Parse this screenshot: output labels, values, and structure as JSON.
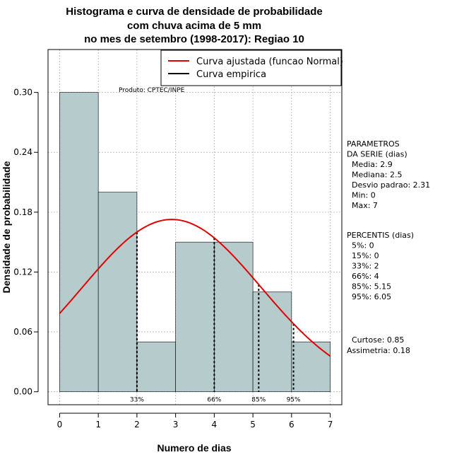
{
  "chart_data": {
    "type": "bar",
    "title_lines": [
      "Histograma e curva de densidade de probabilidade",
      "com chuva acima de 5 mm",
      "no mes de setembro (1998-2017): Regiao 10"
    ],
    "xlabel": "Numero de dias",
    "ylabel": "Densidade de probabilidade",
    "xlim": [
      -0.3,
      7.3
    ],
    "ylim": [
      -0.013,
      0.343
    ],
    "x_ticks": [
      "0",
      "1",
      "2",
      "3",
      "4",
      "5",
      "6",
      "7"
    ],
    "y_ticks": [
      "0.00",
      "0.06",
      "0.12",
      "0.18",
      "0.24",
      "0.30"
    ],
    "histogram": {
      "bin_edges": [
        0,
        1,
        2,
        3,
        4,
        5,
        6,
        7
      ],
      "values": [
        0.3,
        0.2,
        0.05,
        0.15,
        0.15,
        0.1,
        0.05
      ],
      "color": "#b6cccc"
    },
    "normal_curve": {
      "mean": 2.9,
      "sd": 2.31,
      "x_range": [
        0,
        7
      ],
      "color": "#e00000"
    },
    "percentile_lines": [
      {
        "x": 2,
        "label": "33%"
      },
      {
        "x": 4,
        "label": "66%"
      },
      {
        "x": 5.15,
        "label": "85%"
      },
      {
        "x": 6.05,
        "label": "95%"
      }
    ],
    "legend": {
      "position": "top-right",
      "entries": [
        {
          "label": "Curva ajustada (funcao Normal)",
          "color": "#e00000"
        },
        {
          "label": "Curva empirica",
          "color": "#000000"
        }
      ]
    },
    "credit": "Produto: CPTEC/INPE",
    "grid": true
  },
  "side_panel": {
    "parametros": [
      "PARAMETROS",
      "DA SERIE (dias)",
      "  Media: 2.9",
      "  Mediana: 2.5",
      "  Desvio padrao: 2.31",
      "  Min: 0",
      "  Max: 7"
    ],
    "percentis": [
      "PERCENTIS (dias)",
      "  5%: 0",
      "  15%: 0",
      "  33%: 2",
      "  66%: 4",
      "  85%: 5.15",
      "  95%: 6.05"
    ],
    "shape": [
      "  Curtose: 0.85",
      "Assimetria: 0.18"
    ]
  },
  "colors": {
    "bar_fill": "#b6cccc",
    "curve": "#e00000",
    "grid": "#b0b0b0"
  }
}
